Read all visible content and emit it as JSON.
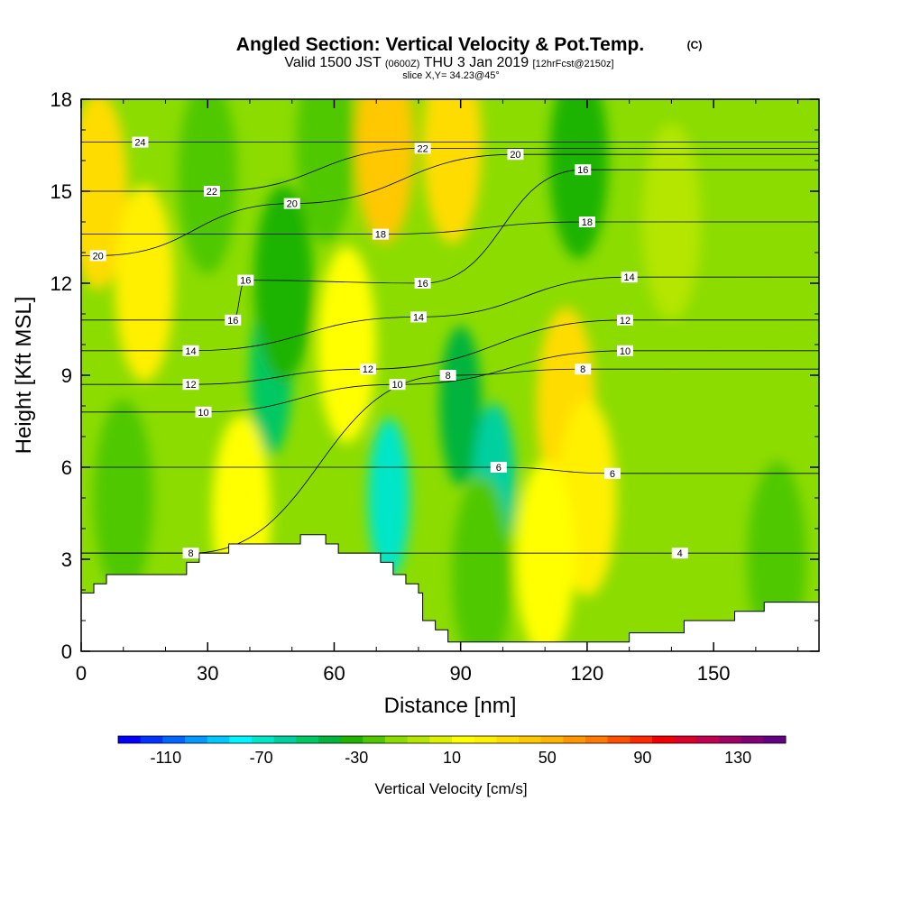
{
  "title": {
    "main": "Angled Section: Vertical Velocity & Pot.Temp.",
    "copyright": "(C)",
    "line2_a": "Valid 1500 JST",
    "line2_b": "(0600Z)",
    "line2_c": "THU 3 Jan 2019",
    "line2_d": "[12hrFcst@2150z]",
    "line3": "slice X,Y= 34.23@45°"
  },
  "chart_data": {
    "type": "heatmap",
    "xlabel": "Distance [nm]",
    "ylabel": "Height [Kft MSL]",
    "xlim": [
      0,
      175
    ],
    "ylim": [
      0,
      18
    ],
    "x_ticks": [
      0,
      30,
      60,
      90,
      120,
      150
    ],
    "y_ticks": [
      0,
      3,
      6,
      9,
      12,
      15,
      18
    ],
    "colorbar": {
      "title": "Vertical Velocity [cm/s]",
      "tick_labels": [
        "-110",
        "-70",
        "-30",
        "10",
        "50",
        "90",
        "130"
      ],
      "tick_values": [
        -110,
        -70,
        -30,
        10,
        50,
        90,
        130
      ],
      "range": [
        -130,
        150
      ],
      "colors": [
        "#0000ff",
        "#0033ff",
        "#0066ff",
        "#0099ff",
        "#00c8ff",
        "#00f5ff",
        "#00e6c8",
        "#00d0a0",
        "#00c864",
        "#00b43c",
        "#1eb400",
        "#50c800",
        "#8cdc00",
        "#b4e600",
        "#dcf000",
        "#ffff00",
        "#fff000",
        "#ffdc00",
        "#ffc800",
        "#ffb400",
        "#ff9600",
        "#ff7800",
        "#ff5000",
        "#ff2800",
        "#f00000",
        "#dc0028",
        "#c00050",
        "#a00064",
        "#820078",
        "#640082"
      ]
    },
    "velocity_features": [
      {
        "x": 4,
        "y": 15.0,
        "value": 35
      },
      {
        "x": 15,
        "y": 12.0,
        "value": 20
      },
      {
        "x": 30,
        "y": 15.5,
        "value": -20
      },
      {
        "x": 45,
        "y": 9.0,
        "value": -55
      },
      {
        "x": 48,
        "y": 12.0,
        "value": -30
      },
      {
        "x": 58,
        "y": 16.5,
        "value": -25
      },
      {
        "x": 63,
        "y": 10.0,
        "value": 15
      },
      {
        "x": 72,
        "y": 16.5,
        "value": 40
      },
      {
        "x": 73,
        "y": 5.0,
        "value": -65
      },
      {
        "x": 90,
        "y": 8.0,
        "value": -45
      },
      {
        "x": 98,
        "y": 5.5,
        "value": -60
      },
      {
        "x": 95,
        "y": 2.5,
        "value": -20
      },
      {
        "x": 88,
        "y": 16.5,
        "value": 30
      },
      {
        "x": 115,
        "y": 8.0,
        "value": 30
      },
      {
        "x": 120,
        "y": 5.0,
        "value": 25
      },
      {
        "x": 118,
        "y": 16.0,
        "value": -30
      },
      {
        "x": 140,
        "y": 14.0,
        "value": 0
      },
      {
        "x": 145,
        "y": 6.0,
        "value": -10
      },
      {
        "x": 160,
        "y": 8.5,
        "value": -15
      },
      {
        "x": 165,
        "y": 3.0,
        "value": -25
      },
      {
        "x": 10,
        "y": 5.0,
        "value": -25
      },
      {
        "x": 38,
        "y": 4.5,
        "value": 15
      },
      {
        "x": 110,
        "y": 3.0,
        "value": 10
      }
    ],
    "isentropes": [
      {
        "value": 4,
        "label_x": 142,
        "label_y": 3.2
      },
      {
        "value": 6,
        "label_x": 99,
        "label_y": 6.0
      },
      {
        "value": 6,
        "label_x": 126,
        "label_y": 5.8
      },
      {
        "value": 8,
        "label_x": 26,
        "label_y": 3.2
      },
      {
        "value": 8,
        "label_x": 87,
        "label_y": 9.0
      },
      {
        "value": 8,
        "label_x": 119,
        "label_y": 9.2
      },
      {
        "value": 10,
        "label_x": 29,
        "label_y": 7.8
      },
      {
        "value": 10,
        "label_x": 75,
        "label_y": 8.7
      },
      {
        "value": 10,
        "label_x": 129,
        "label_y": 9.8
      },
      {
        "value": 12,
        "label_x": 26,
        "label_y": 8.7
      },
      {
        "value": 12,
        "label_x": 68,
        "label_y": 9.2
      },
      {
        "value": 12,
        "label_x": 129,
        "label_y": 10.8
      },
      {
        "value": 14,
        "label_x": 26,
        "label_y": 9.8
      },
      {
        "value": 14,
        "label_x": 80,
        "label_y": 10.9
      },
      {
        "value": 14,
        "label_x": 130,
        "label_y": 12.2
      },
      {
        "value": 16,
        "label_x": 36,
        "label_y": 10.8
      },
      {
        "value": 16,
        "label_x": 39,
        "label_y": 12.1
      },
      {
        "value": 16,
        "label_x": 81,
        "label_y": 12.0
      },
      {
        "value": 16,
        "label_x": 119,
        "label_y": 15.7
      },
      {
        "value": 18,
        "label_x": 71,
        "label_y": 13.6
      },
      {
        "value": 18,
        "label_x": 120,
        "label_y": 14.0
      },
      {
        "value": 20,
        "label_x": 4,
        "label_y": 12.9
      },
      {
        "value": 20,
        "label_x": 50,
        "label_y": 14.6
      },
      {
        "value": 20,
        "label_x": 103,
        "label_y": 16.2
      },
      {
        "value": 22,
        "label_x": 31,
        "label_y": 15.0
      },
      {
        "value": 22,
        "label_x": 81,
        "label_y": 16.4
      },
      {
        "value": 24,
        "label_x": 14,
        "label_y": 16.6
      }
    ],
    "terrain": [
      [
        0,
        1.9
      ],
      [
        3,
        1.9
      ],
      [
        3,
        2.2
      ],
      [
        6,
        2.2
      ],
      [
        6,
        2.5
      ],
      [
        25,
        2.5
      ],
      [
        25,
        2.9
      ],
      [
        28,
        2.9
      ],
      [
        28,
        3.2
      ],
      [
        35,
        3.2
      ],
      [
        35,
        3.5
      ],
      [
        52,
        3.5
      ],
      [
        52,
        3.8
      ],
      [
        58,
        3.8
      ],
      [
        58,
        3.5
      ],
      [
        61,
        3.5
      ],
      [
        61,
        3.2
      ],
      [
        71,
        3.2
      ],
      [
        71,
        2.9
      ],
      [
        74,
        2.9
      ],
      [
        74,
        2.5
      ],
      [
        77,
        2.5
      ],
      [
        77,
        2.2
      ],
      [
        80,
        2.2
      ],
      [
        80,
        1.9
      ],
      [
        81,
        1.9
      ],
      [
        81,
        1.0
      ],
      [
        84,
        1.0
      ],
      [
        84,
        0.7
      ],
      [
        87,
        0.7
      ],
      [
        87,
        0.3
      ],
      [
        130,
        0.3
      ],
      [
        130,
        0.6
      ],
      [
        143,
        0.6
      ],
      [
        143,
        1.0
      ],
      [
        155,
        1.0
      ],
      [
        155,
        1.3
      ],
      [
        162,
        1.3
      ],
      [
        162,
        1.6
      ],
      [
        175,
        1.6
      ]
    ]
  }
}
